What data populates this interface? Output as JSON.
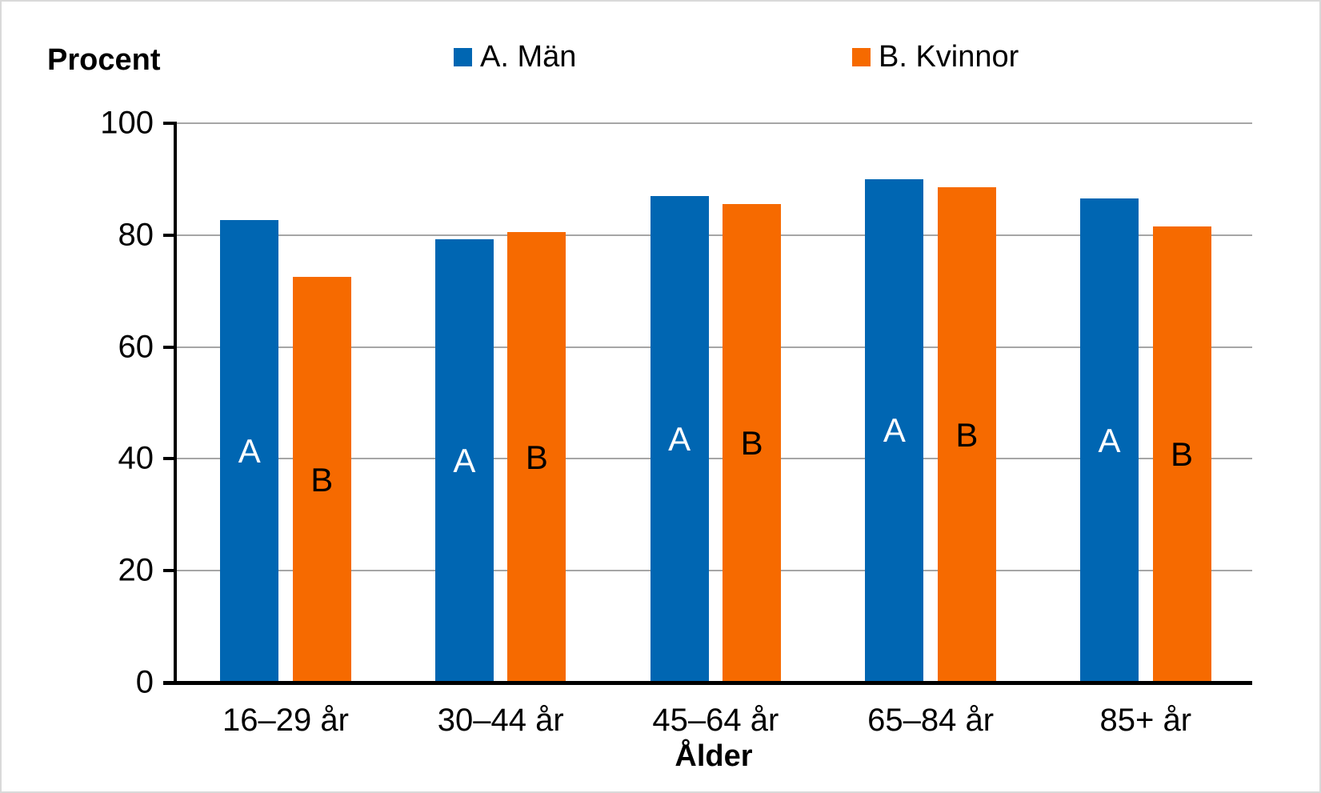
{
  "chart_data": {
    "type": "bar",
    "title": "",
    "ylabel": "Procent",
    "xlabel": "Ålder",
    "categories": [
      "16–29 år",
      "30–44 år",
      "45–64 år",
      "65–84 år",
      "85+ år"
    ],
    "series": [
      {
        "name": "A. Män",
        "letter": "A",
        "color": "#0066b2",
        "label_color": "#ffffff",
        "values": [
          82.7,
          79.3,
          87.0,
          90.0,
          86.5
        ]
      },
      {
        "name": "B. Kvinnor",
        "letter": "B",
        "color": "#f66a00",
        "label_color": "#000000",
        "values": [
          72.5,
          80.5,
          85.5,
          88.5,
          81.5
        ]
      }
    ],
    "ylim": [
      0,
      100
    ],
    "yticks": [
      0,
      20,
      40,
      60,
      80,
      100
    ],
    "grid": true,
    "legend_position": "top",
    "gridline_color": "#a6a6a6",
    "axis_color": "#000000"
  }
}
